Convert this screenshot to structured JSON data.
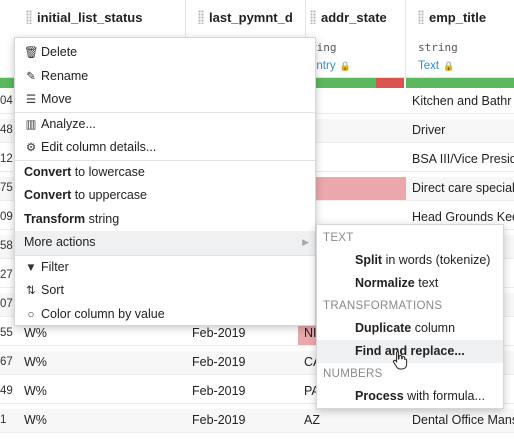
{
  "columns": [
    {
      "name": "initial_list_status",
      "type": "",
      "meaning": ""
    },
    {
      "name": "last_pymnt_d",
      "type": "",
      "meaning": ""
    },
    {
      "name": "addr_state",
      "type": "ring",
      "meaning": "untry"
    },
    {
      "name": "emp_title",
      "type": "string",
      "meaning": "Text"
    }
  ],
  "colors": {
    "valid": "#5cb85c",
    "invalid": "#d9534f",
    "meaning_link": "#2a8fd6",
    "invalid_cell": "#eaa8ad"
  },
  "rows": [
    {
      "idx": "04",
      "status": "",
      "pymnt": "",
      "addr": "D",
      "emp": "Kitchen and Bathr",
      "addr_invalid": false
    },
    {
      "idx": "48",
      "status": "",
      "pymnt": "",
      "addr": "D",
      "emp": "Driver",
      "addr_invalid": false
    },
    {
      "idx": "12",
      "status": "",
      "pymnt": "",
      "addr": "S",
      "emp": "BSA III/Vice Presid",
      "addr_invalid": false
    },
    {
      "idx": "75",
      "status": "",
      "pymnt": "",
      "addr": "K",
      "emp": "Direct care special",
      "addr_invalid": true
    },
    {
      "idx": "09",
      "status": "",
      "pymnt": "",
      "addr": "A",
      "emp": "Head Grounds Kee",
      "addr_invalid": false
    },
    {
      "idx": "58",
      "status": "",
      "pymnt": "",
      "addr": "",
      "emp": "",
      "addr_invalid": false
    },
    {
      "idx": "27",
      "status": "",
      "pymnt": "",
      "addr": "",
      "emp": "or",
      "addr_invalid": false
    },
    {
      "idx": "07",
      "status": "",
      "pymnt": "",
      "addr": "",
      "emp": "",
      "addr_invalid": false
    },
    {
      "idx": "55",
      "status": "W%",
      "pymnt": "Feb-2019",
      "addr": "NI",
      "emp": "cut",
      "addr_invalid": true
    },
    {
      "idx": "67",
      "status": "W%",
      "pymnt": "Feb-2019",
      "addr": "CA",
      "emp": "RA",
      "addr_invalid": false
    },
    {
      "idx": "49",
      "status": "W%",
      "pymnt": "Feb-2019",
      "addr": "PA",
      "emp": "",
      "addr_invalid": false
    },
    {
      "idx": "1",
      "status": "W%",
      "pymnt": "Feb-2019",
      "addr": "AZ",
      "emp": "Dental Office Mans",
      "addr_invalid": false
    }
  ],
  "menu": {
    "delete": "Delete",
    "rename": "Rename",
    "move": "Move",
    "analyze": "Analyze...",
    "edit_details": "Edit column details...",
    "lower_bold": "Convert",
    "lower_rest": " to lowercase",
    "upper_bold": "Convert",
    "upper_rest": " to uppercase",
    "transform_bold": "Transform",
    "transform_rest": " string",
    "more_actions": "More actions",
    "filter": "Filter",
    "sort": "Sort",
    "color_by_value": "Color column by value"
  },
  "submenu": {
    "sec_text": "TEXT",
    "split_bold": "Split",
    "split_rest": " in words (tokenize)",
    "normalize_bold": "Normalize",
    "normalize_rest": " text",
    "sec_transform": "TRANSFORMATIONS",
    "duplicate_bold": "Duplicate",
    "duplicate_rest": " column",
    "find_replace": "Find and replace...",
    "sec_numbers": "NUMBERS",
    "process_bold": "Process",
    "process_rest": " with formula..."
  }
}
